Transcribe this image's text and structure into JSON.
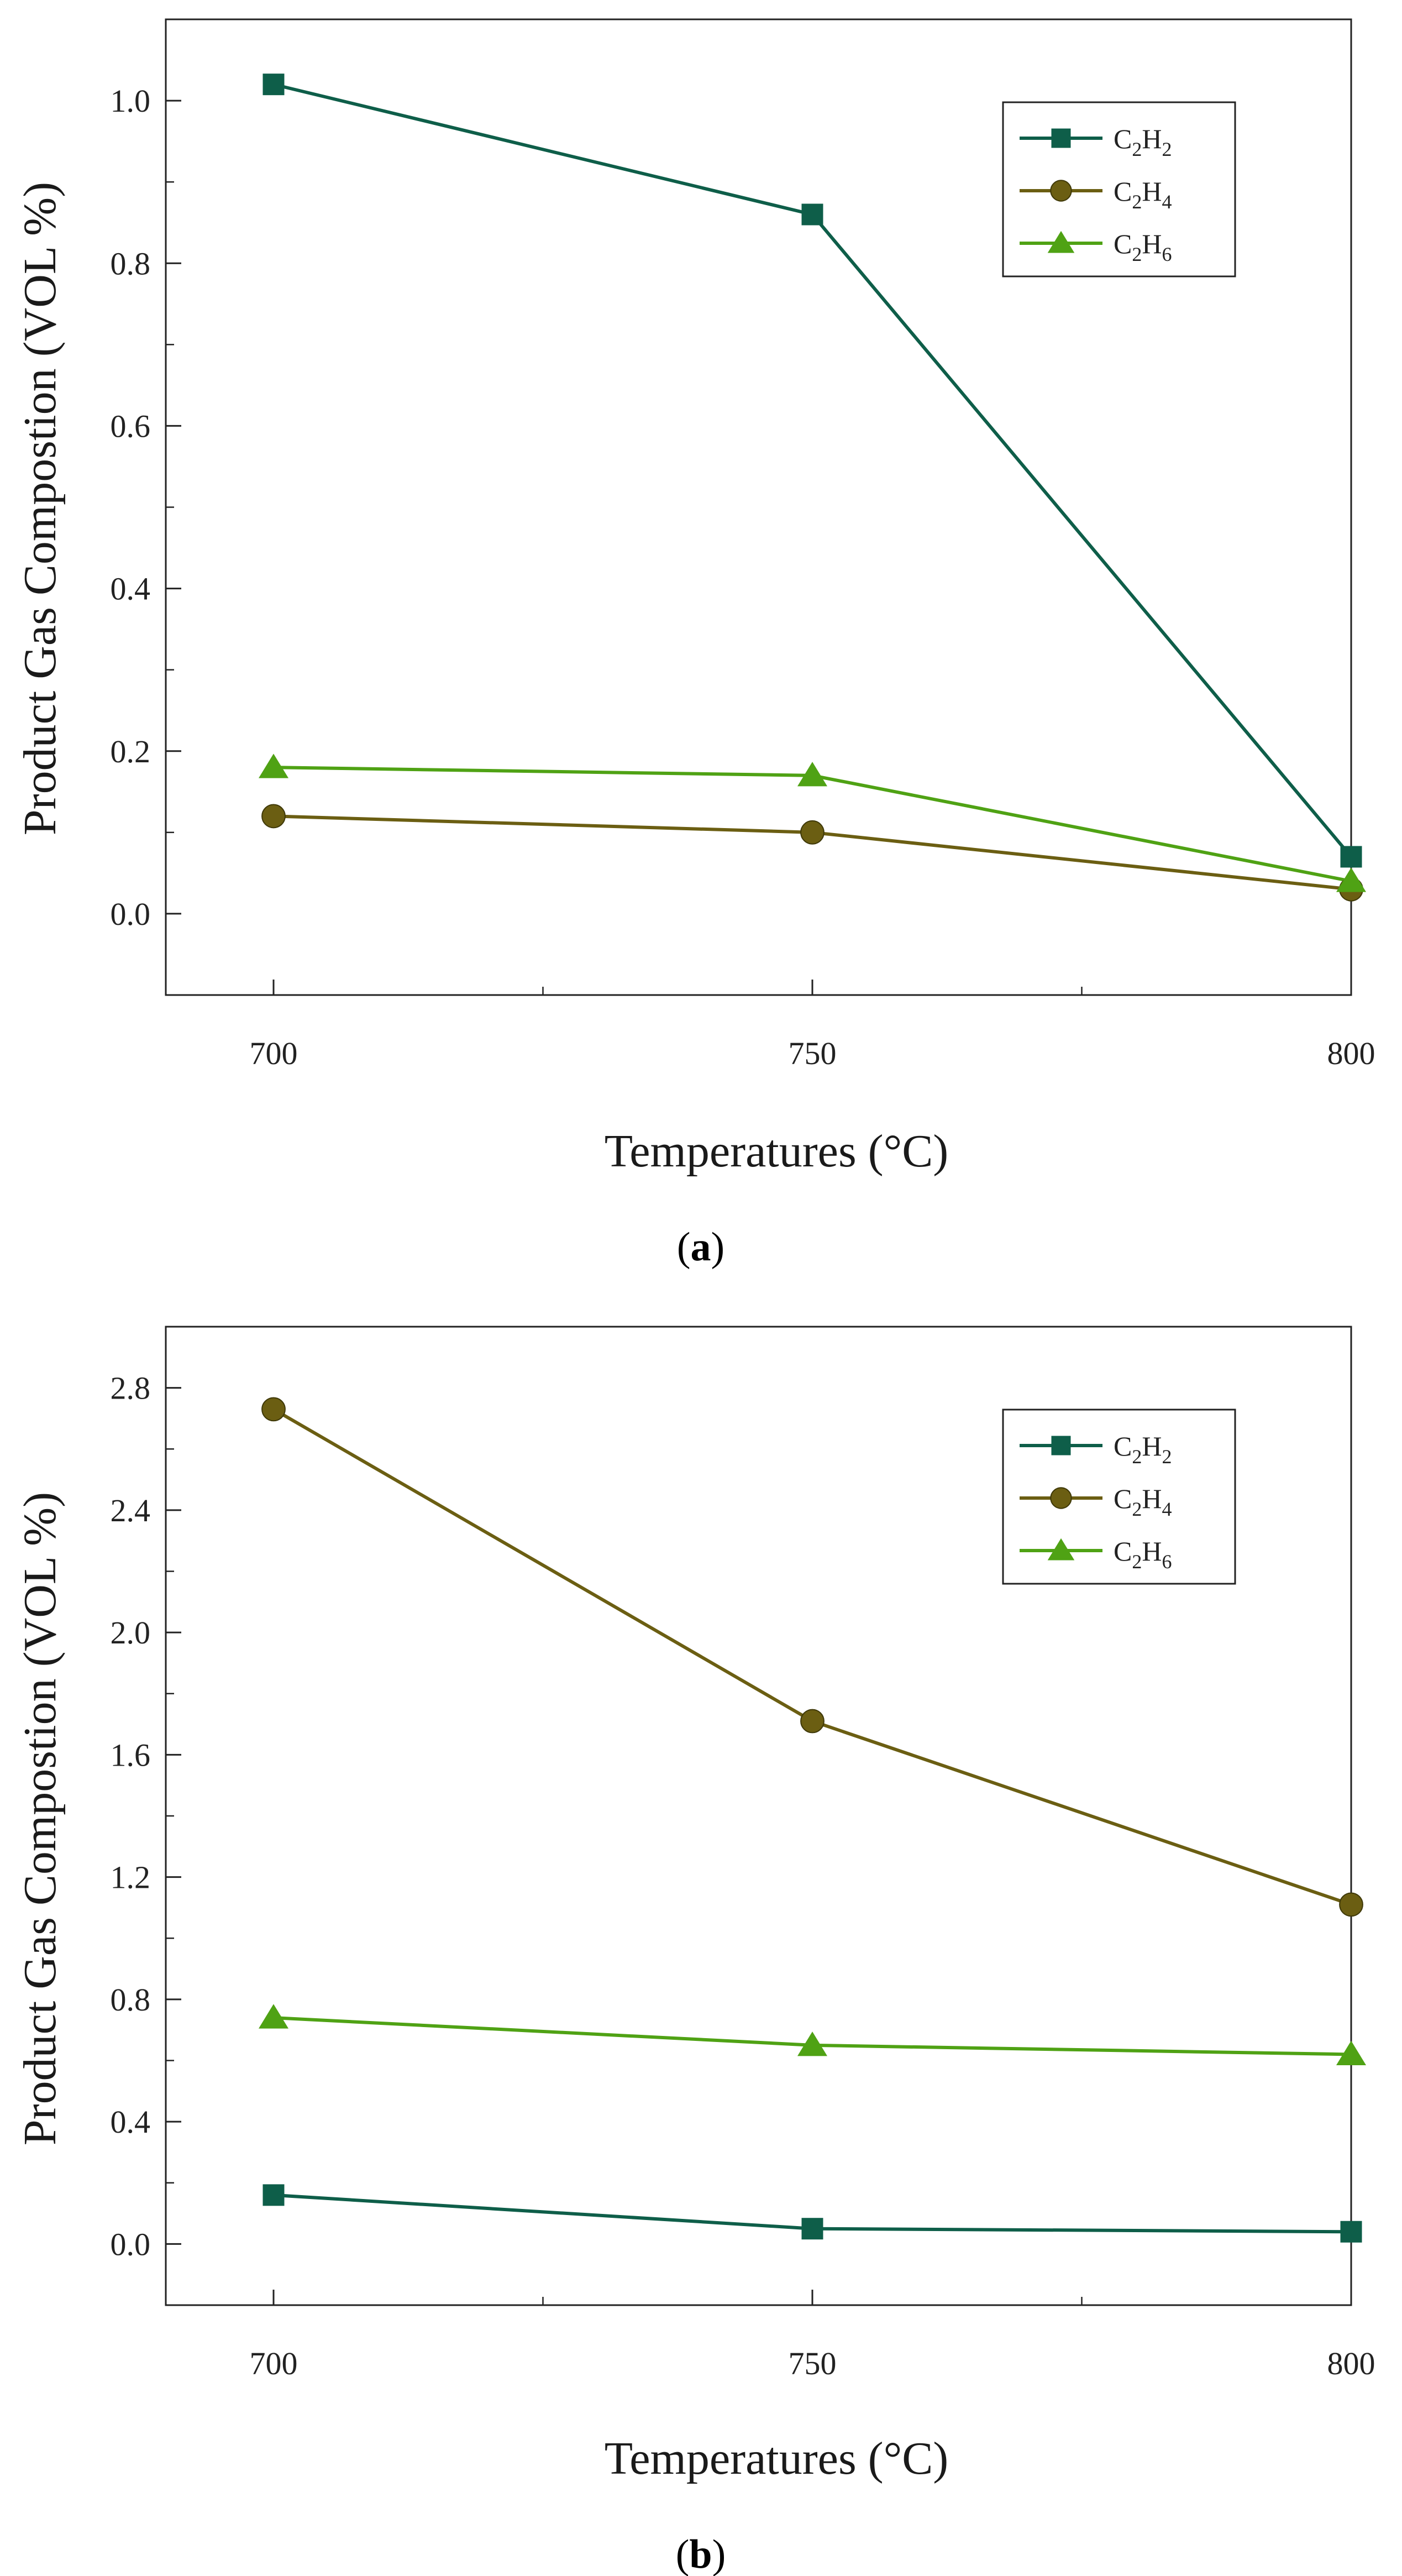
{
  "figure": {
    "panels": [
      {
        "caption_open": "(",
        "caption_label": "a",
        "caption_close": ")"
      },
      {
        "caption_open": "(",
        "caption_label": "b",
        "caption_close": ")"
      }
    ]
  },
  "chart_data": [
    {
      "type": "line",
      "panel": "a",
      "xlabel": "Temperatures (°C)",
      "ylabel": "Product Gas Compostion (VOL %)",
      "x": [
        700,
        750,
        800
      ],
      "xlim": [
        690,
        800
      ],
      "ylim": [
        -0.1,
        1.1
      ],
      "xticks": [
        "700",
        "750",
        "800"
      ],
      "yticks": [
        "0.0",
        "0.2",
        "0.4",
        "0.6",
        "0.8",
        "1.0"
      ],
      "ytick_values": [
        0.0,
        0.2,
        0.4,
        0.6,
        0.8,
        1.0
      ],
      "legend_position": "top-right",
      "series": [
        {
          "name": "C2H2",
          "sym": "C",
          "sub1": "2",
          "sym2": "H",
          "sub2": "2",
          "marker": "square",
          "color": "#0e5e49",
          "values": [
            1.02,
            0.86,
            0.07
          ]
        },
        {
          "name": "C2H4",
          "sym": "C",
          "sub1": "2",
          "sym2": "H",
          "sub2": "4",
          "marker": "circle",
          "color": "#6b5e12",
          "values": [
            0.12,
            0.1,
            0.03
          ]
        },
        {
          "name": "C2H6",
          "sym": "C",
          "sub1": "2",
          "sym2": "H",
          "sub2": "6",
          "marker": "triangle",
          "color": "#4fa214",
          "values": [
            0.18,
            0.17,
            0.04
          ]
        }
      ]
    },
    {
      "type": "line",
      "panel": "b",
      "xlabel": "Temperatures (°C)",
      "ylabel": "Product Gas Compostion (VOL %)",
      "x": [
        700,
        750,
        800
      ],
      "xlim": [
        690,
        800
      ],
      "ylim": [
        -0.2,
        3.0
      ],
      "xticks": [
        "700",
        "750",
        "800"
      ],
      "yticks": [
        "0.0",
        "0.4",
        "0.8",
        "1.2",
        "1.6",
        "2.0",
        "2.4",
        "2.8"
      ],
      "ytick_values": [
        0.0,
        0.4,
        0.8,
        1.2,
        1.6,
        2.0,
        2.4,
        2.8
      ],
      "legend_position": "top-right",
      "series": [
        {
          "name": "C2H2",
          "sym": "C",
          "sub1": "2",
          "sym2": "H",
          "sub2": "2",
          "marker": "square",
          "color": "#0e5e49",
          "values": [
            0.16,
            0.05,
            0.04
          ]
        },
        {
          "name": "C2H4",
          "sym": "C",
          "sub1": "2",
          "sym2": "H",
          "sub2": "4",
          "marker": "circle",
          "color": "#6b5e12",
          "values": [
            2.73,
            1.71,
            1.11
          ]
        },
        {
          "name": "C2H6",
          "sym": "C",
          "sub1": "2",
          "sym2": "H",
          "sub2": "6",
          "marker": "triangle",
          "color": "#4fa214",
          "values": [
            0.74,
            0.65,
            0.62
          ]
        }
      ]
    }
  ]
}
